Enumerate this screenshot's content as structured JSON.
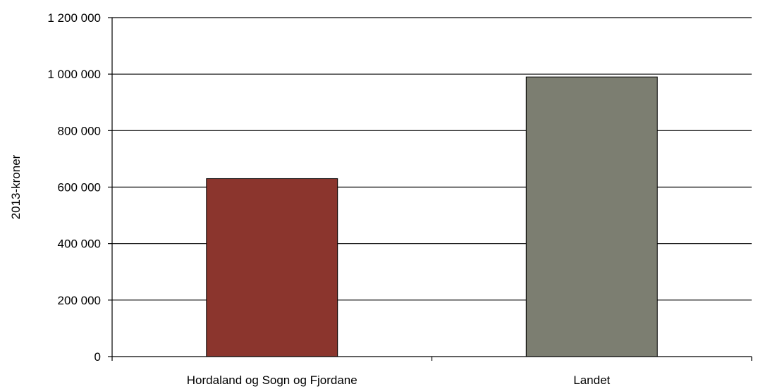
{
  "chart_data": {
    "type": "bar",
    "title": "",
    "xlabel": "",
    "ylabel": "2013-kroner",
    "categories": [
      "Hordaland og Sogn og Fjordane",
      "Landet"
    ],
    "values": [
      630000,
      990000
    ],
    "colors": [
      "#8b352d",
      "#7c7e71"
    ],
    "ylim": [
      0,
      1200000
    ],
    "yticks": [
      0,
      200000,
      400000,
      600000,
      800000,
      1000000,
      1200000
    ],
    "ytick_labels": [
      "0",
      "200 000",
      "400 000",
      "600 000",
      "800 000",
      "1 000 000",
      "1 200 000"
    ],
    "grid": true,
    "legend": "none"
  }
}
